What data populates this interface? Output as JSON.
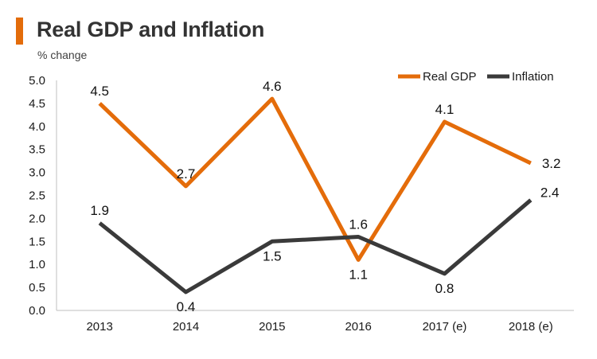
{
  "colors": {
    "accent": "#E36C0A",
    "real_gdp": "#E46C0A",
    "inflation": "#3A3A3A"
  },
  "chart_data": {
    "type": "line",
    "title": "Real GDP and Inflation",
    "subtitle": "% change",
    "categories": [
      "2013",
      "2014",
      "2015",
      "2016",
      "2017 (e)",
      "2018 (e)"
    ],
    "series": [
      {
        "name": "Real GDP",
        "values": [
          4.5,
          2.7,
          4.6,
          1.1,
          4.1,
          3.2
        ],
        "labels": [
          "4.5",
          "2.7",
          "4.6",
          "1.1",
          "4.1",
          "3.2"
        ]
      },
      {
        "name": "Inflation",
        "values": [
          1.9,
          0.4,
          1.5,
          1.6,
          0.8,
          2.4
        ],
        "labels": [
          "1.9",
          "0.4",
          "1.5",
          "1.6",
          "0.8",
          "2.4"
        ]
      }
    ],
    "ylim": [
      0,
      5
    ],
    "yticks": [
      "0.0",
      "0.5",
      "1.0",
      "1.5",
      "2.0",
      "2.5",
      "3.0",
      "3.5",
      "4.0",
      "4.5",
      "5.0"
    ],
    "xlabel": "",
    "ylabel": "",
    "legend_position": "top-right",
    "grid": false
  }
}
